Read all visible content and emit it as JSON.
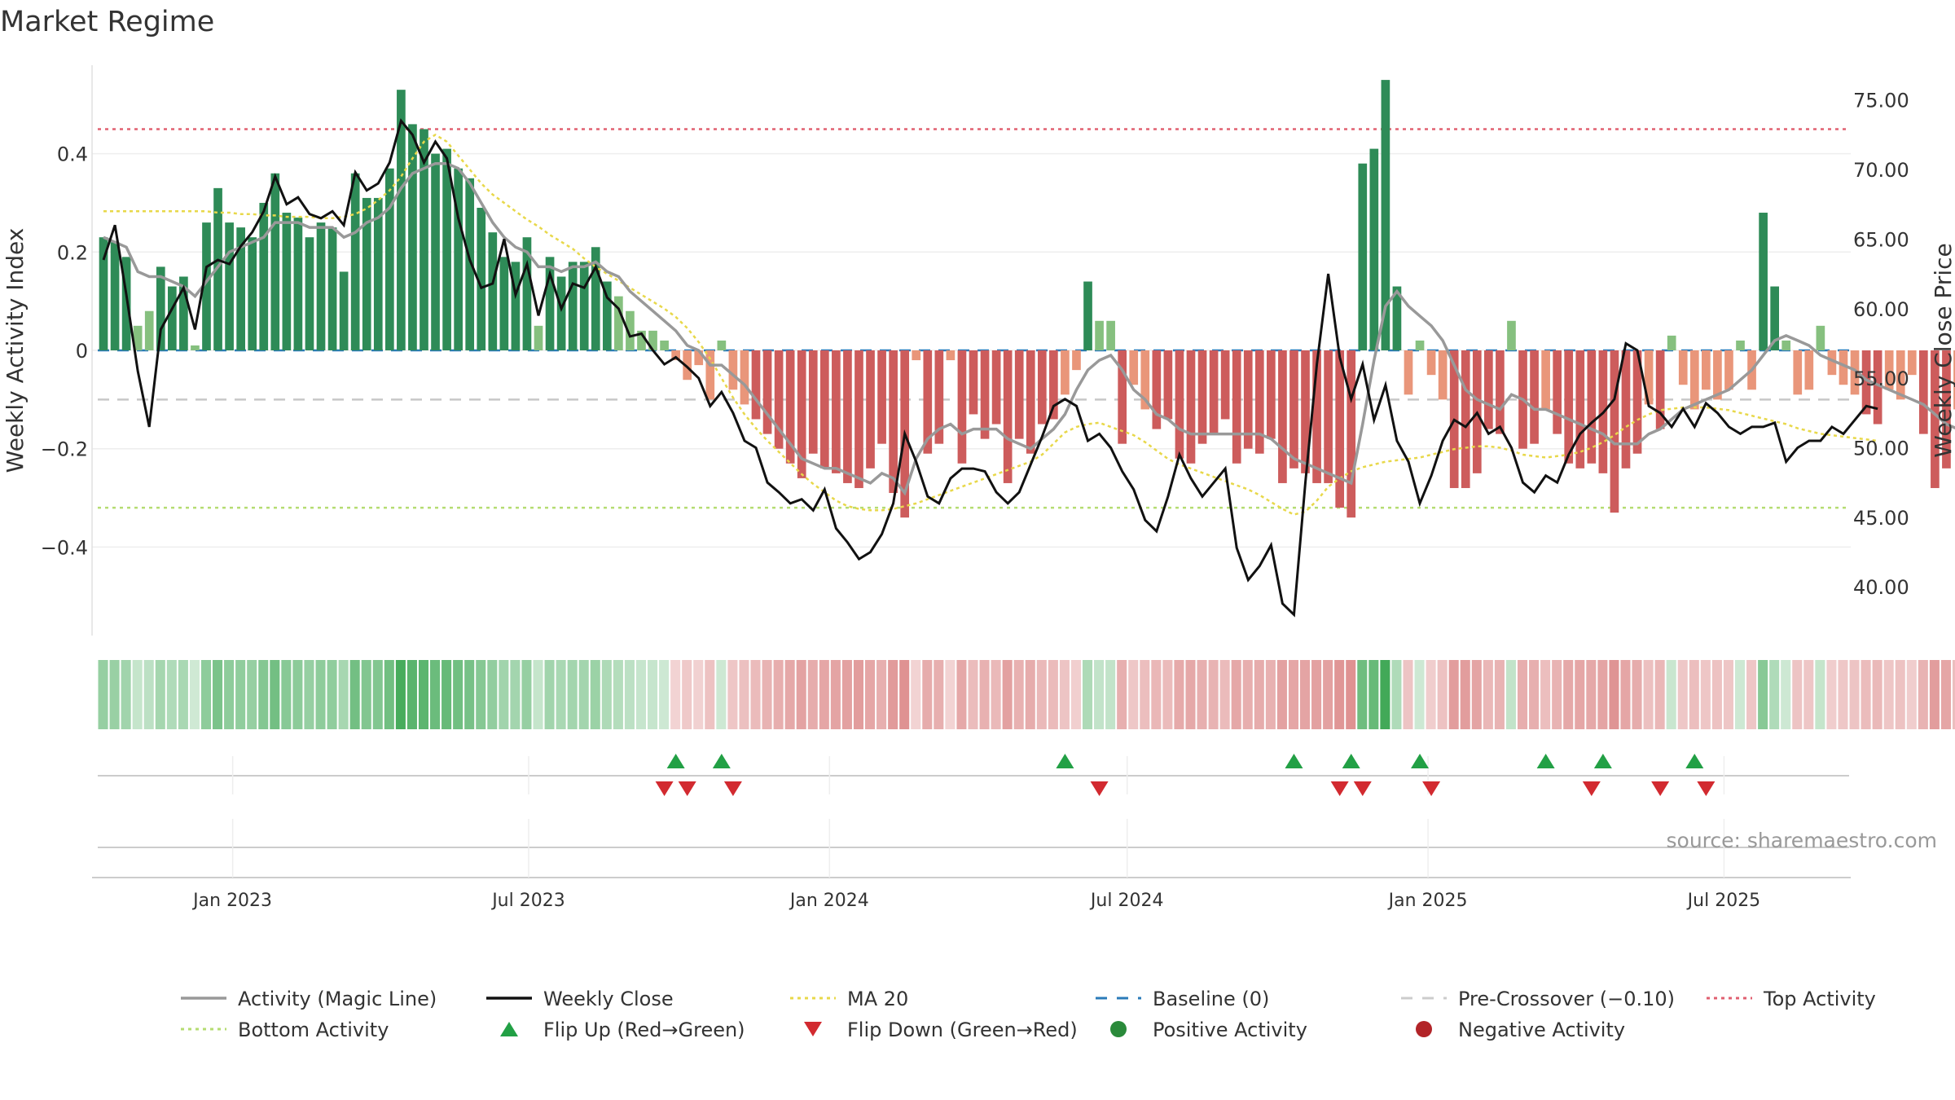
{
  "chart_data": {
    "type": "bar",
    "title": "Market Regime",
    "source": "source: sharemaestro.com",
    "ylabel_left": "Weekly Activity Index",
    "ylabel_right": "Weekly Close Price",
    "x_start": "2022-10-14",
    "week_count": 153,
    "left_ylim": [
      -0.58,
      0.58
    ],
    "right_ylim": [
      36.5,
      77.5
    ],
    "left_ticks": [
      {
        "v": 0.4,
        "label": "0.4"
      },
      {
        "v": 0.2,
        "label": "0.2"
      },
      {
        "v": 0,
        "label": "0"
      },
      {
        "v": -0.2,
        "label": "−0.2"
      },
      {
        "v": -0.4,
        "label": "−0.4"
      }
    ],
    "right_ticks": [
      {
        "v": 75,
        "label": "75.00"
      },
      {
        "v": 70,
        "label": "70.00"
      },
      {
        "v": 65,
        "label": "65.00"
      },
      {
        "v": 60,
        "label": "60.00"
      },
      {
        "v": 55,
        "label": "55.00"
      },
      {
        "v": 50,
        "label": "50.00"
      },
      {
        "v": 45,
        "label": "45.00"
      },
      {
        "v": 40,
        "label": "40.00"
      }
    ],
    "x_ticks": [
      {
        "date": "2023-01-01",
        "label": "Jan 2023"
      },
      {
        "date": "2023-07-01",
        "label": "Jul 2023"
      },
      {
        "date": "2024-01-01",
        "label": "Jan 2024"
      },
      {
        "date": "2024-07-01",
        "label": "Jul 2024"
      },
      {
        "date": "2025-01-01",
        "label": "Jan 2025"
      },
      {
        "date": "2025-07-01",
        "label": "Jul 2025"
      }
    ],
    "hlines": {
      "baseline": 0,
      "pre_crossover": -0.1,
      "top_activity": 0.45,
      "bottom_activity": -0.32
    },
    "activity_index": [
      0.23,
      0.22,
      0.19,
      0.05,
      0.08,
      0.17,
      0.13,
      0.15,
      0.01,
      0.26,
      0.33,
      0.26,
      0.25,
      0.23,
      0.3,
      0.36,
      0.28,
      0.27,
      0.23,
      0.26,
      0.25,
      0.16,
      0.36,
      0.31,
      0.31,
      0.37,
      0.53,
      0.46,
      0.45,
      0.4,
      0.41,
      0.37,
      0.35,
      0.29,
      0.24,
      0.19,
      0.18,
      0.23,
      0.05,
      0.19,
      0.15,
      0.18,
      0.18,
      0.21,
      0.14,
      0.11,
      0.08,
      0.04,
      0.04,
      0.02,
      -0.02,
      -0.06,
      -0.03,
      -0.1,
      0.02,
      -0.08,
      -0.11,
      -0.14,
      -0.17,
      -0.2,
      -0.23,
      -0.26,
      -0.21,
      -0.24,
      -0.25,
      -0.27,
      -0.28,
      -0.24,
      -0.19,
      -0.29,
      -0.34,
      -0.02,
      -0.21,
      -0.19,
      -0.02,
      -0.23,
      -0.13,
      -0.18,
      -0.15,
      -0.27,
      -0.18,
      -0.21,
      -0.15,
      -0.14,
      -0.09,
      -0.04,
      0.14,
      0.06,
      0.06,
      -0.19,
      -0.07,
      -0.12,
      -0.16,
      -0.14,
      -0.22,
      -0.23,
      -0.19,
      -0.17,
      -0.14,
      -0.23,
      -0.2,
      -0.21,
      -0.18,
      -0.27,
      -0.24,
      -0.25,
      -0.27,
      -0.27,
      -0.32,
      -0.34,
      0.38,
      0.41,
      0.55,
      0.13,
      -0.09,
      0.02,
      -0.05,
      -0.1,
      -0.28,
      -0.28,
      -0.25,
      -0.16,
      -0.17,
      0.06,
      -0.2,
      -0.19,
      -0.12,
      -0.17,
      -0.23,
      -0.24,
      -0.23,
      -0.25,
      -0.33,
      -0.24,
      -0.21,
      -0.11,
      -0.16,
      0.03,
      -0.07,
      -0.12,
      -0.08,
      -0.1,
      -0.08,
      0.02,
      -0.08,
      0.28,
      0.13,
      0.02,
      -0.09,
      -0.08,
      0.05,
      -0.05,
      -0.07,
      -0.09,
      -0.13,
      -0.15,
      -0.08,
      -0.1,
      -0.05,
      -0.17,
      -0.28,
      -0.24,
      -0.12,
      -0.21,
      -0.15,
      -0.26,
      -0.18,
      -0.2
    ],
    "series": [
      {
        "name": "Activity (Magic Line)",
        "color": "#999999",
        "values": [
          0.23,
          0.22,
          0.21,
          0.16,
          0.15,
          0.15,
          0.14,
          0.13,
          0.11,
          0.14,
          0.17,
          0.2,
          0.21,
          0.22,
          0.23,
          0.26,
          0.26,
          0.26,
          0.25,
          0.25,
          0.25,
          0.23,
          0.24,
          0.26,
          0.27,
          0.29,
          0.33,
          0.36,
          0.37,
          0.38,
          0.38,
          0.37,
          0.34,
          0.3,
          0.26,
          0.23,
          0.21,
          0.2,
          0.17,
          0.17,
          0.16,
          0.17,
          0.17,
          0.18,
          0.16,
          0.15,
          0.12,
          0.1,
          0.08,
          0.06,
          0.04,
          0.01,
          0.0,
          -0.03,
          -0.03,
          -0.05,
          -0.07,
          -0.1,
          -0.13,
          -0.16,
          -0.19,
          -0.22,
          -0.23,
          -0.24,
          -0.24,
          -0.25,
          -0.26,
          -0.27,
          -0.25,
          -0.26,
          -0.29,
          -0.22,
          -0.18,
          -0.16,
          -0.15,
          -0.17,
          -0.16,
          -0.16,
          -0.16,
          -0.18,
          -0.19,
          -0.2,
          -0.18,
          -0.16,
          -0.13,
          -0.08,
          -0.04,
          -0.02,
          -0.01,
          -0.04,
          -0.08,
          -0.1,
          -0.13,
          -0.14,
          -0.16,
          -0.17,
          -0.17,
          -0.17,
          -0.17,
          -0.17,
          -0.17,
          -0.17,
          -0.18,
          -0.2,
          -0.22,
          -0.23,
          -0.24,
          -0.25,
          -0.26,
          -0.27,
          -0.15,
          -0.02,
          0.09,
          0.12,
          0.09,
          0.07,
          0.05,
          0.02,
          -0.03,
          -0.08,
          -0.1,
          -0.11,
          -0.12,
          -0.09,
          -0.1,
          -0.12,
          -0.12,
          -0.13,
          -0.14,
          -0.15,
          -0.16,
          -0.17,
          -0.19,
          -0.19,
          -0.19,
          -0.17,
          -0.16,
          -0.14,
          -0.12,
          -0.11,
          -0.1,
          -0.09,
          -0.08,
          -0.06,
          -0.04,
          -0.01,
          0.02,
          0.03,
          0.02,
          0.01,
          -0.01,
          -0.02,
          -0.03,
          -0.04,
          -0.06,
          -0.07,
          -0.08,
          -0.09,
          -0.1,
          -0.11,
          -0.13,
          -0.15,
          -0.16,
          -0.15,
          -0.16,
          -0.18,
          -0.19,
          -0.2
        ]
      },
      {
        "name": "Weekly Close",
        "color": "#111111",
        "values": [
          63.5,
          66.0,
          61.0,
          55.5,
          51.5,
          58.5,
          60.0,
          61.5,
          58.5,
          63.0,
          63.5,
          63.2,
          64.5,
          65.5,
          67.0,
          69.5,
          67.5,
          68.0,
          66.8,
          66.5,
          67.0,
          66.0,
          69.8,
          68.5,
          69.0,
          70.5,
          73.5,
          72.5,
          70.5,
          72.0,
          70.8,
          66.5,
          63.5,
          61.5,
          61.8,
          65.0,
          61.0,
          63.2,
          59.5,
          62.5,
          60.0,
          61.8,
          61.5,
          63.0,
          60.8,
          60.0,
          58.0,
          58.2,
          57.0,
          56.0,
          56.5,
          55.8,
          55.0,
          53.0,
          54.0,
          52.5,
          50.5,
          50.0,
          47.5,
          46.8,
          46.0,
          46.3,
          45.5,
          47.0,
          44.2,
          43.2,
          42.0,
          42.5,
          43.8,
          46.0,
          51.0,
          49.0,
          46.5,
          46.0,
          47.8,
          48.5,
          48.5,
          48.3,
          46.8,
          46.0,
          46.8,
          48.8,
          50.8,
          53.0,
          53.5,
          53.0,
          50.5,
          51.0,
          50.0,
          48.3,
          47.0,
          44.8,
          44.0,
          46.5,
          49.5,
          47.8,
          46.5,
          47.5,
          48.5,
          42.8,
          40.5,
          41.5,
          43.0,
          38.8,
          38.0,
          47.5,
          56.0,
          62.5,
          56.5,
          53.5,
          56.0,
          52.0,
          54.5,
          50.5,
          49.0,
          46.0,
          48.0,
          50.5,
          52.0,
          51.5,
          52.5,
          51.0,
          51.5,
          50.0,
          47.5,
          46.8,
          48.0,
          47.5,
          49.5,
          51.0,
          51.8,
          52.5,
          53.5,
          57.5,
          57.0,
          53.0,
          52.5,
          51.5,
          52.8,
          51.5,
          53.2,
          52.5,
          51.5,
          51.0,
          51.5,
          51.5,
          51.8,
          49.0,
          50.0,
          50.5,
          50.5,
          51.5,
          51.0,
          52.0,
          53.0,
          52.8
        ]
      },
      {
        "name": "MA 20",
        "color": "#e8d84a",
        "values": [
          67.0,
          67.0,
          67.0,
          67.0,
          67.0,
          67.0,
          67.0,
          67.0,
          67.0,
          67.0,
          66.9,
          66.9,
          66.8,
          66.8,
          66.7,
          66.7,
          66.6,
          66.6,
          66.6,
          66.5,
          66.5,
          66.6,
          66.8,
          67.2,
          67.8,
          68.5,
          69.5,
          70.8,
          72.0,
          72.5,
          72.0,
          71.0,
          70.0,
          69.0,
          68.2,
          67.6,
          67.0,
          66.4,
          65.9,
          65.3,
          64.8,
          64.3,
          63.6,
          63.0,
          62.5,
          62.0,
          61.5,
          61.0,
          60.5,
          60.0,
          59.4,
          58.6,
          57.6,
          56.4,
          55.0,
          53.6,
          52.4,
          51.4,
          50.5,
          49.7,
          48.9,
          48.1,
          47.4,
          46.8,
          46.2,
          45.8,
          45.6,
          45.5,
          45.5,
          45.6,
          45.8,
          46.0,
          46.3,
          46.6,
          46.9,
          47.2,
          47.5,
          47.8,
          48.1,
          48.4,
          48.7,
          49.0,
          49.5,
          50.3,
          51.1,
          51.5,
          51.7,
          51.8,
          51.5,
          51.2,
          50.9,
          50.4,
          49.8,
          49.2,
          48.8,
          48.5,
          48.2,
          47.9,
          47.6,
          47.3,
          47.0,
          46.6,
          46.1,
          45.6,
          45.2,
          45.4,
          46.2,
          47.2,
          47.8,
          48.3,
          48.6,
          48.8,
          49.0,
          49.1,
          49.2,
          49.3,
          49.5,
          49.7,
          49.9,
          50.0,
          50.1,
          50.1,
          50.0,
          49.8,
          49.5,
          49.4,
          49.3,
          49.4,
          49.5,
          49.7,
          50.0,
          50.4,
          50.9,
          51.5,
          52.0,
          52.4,
          52.7,
          52.8,
          52.9,
          52.9,
          52.9,
          52.8,
          52.7,
          52.5,
          52.3,
          52.1,
          51.9,
          51.7,
          51.4,
          51.2,
          51.0,
          50.9,
          50.8,
          50.7,
          50.6,
          50.5
        ]
      }
    ],
    "flip_up": [
      50,
      54,
      84,
      104,
      109,
      115,
      126,
      131,
      139
    ],
    "flip_down": [
      49,
      51,
      55,
      87,
      108,
      110,
      116,
      130,
      136,
      140
    ],
    "legend": [
      {
        "label": "Activity (Magic Line)",
        "symbol": "line",
        "color": "#999999"
      },
      {
        "label": "Weekly Close",
        "symbol": "line",
        "color": "#111111"
      },
      {
        "label": "MA 20",
        "symbol": "dotted",
        "color": "#e8d84a"
      },
      {
        "label": "Baseline (0)",
        "symbol": "dashed",
        "color": "#2b7bb9"
      },
      {
        "label": "Pre-Crossover (−0.10)",
        "symbol": "dashed-light",
        "color": "#cccccc"
      },
      {
        "label": "Top Activity",
        "symbol": "dotted",
        "color": "#e06070"
      },
      {
        "label": "Bottom Activity",
        "symbol": "dotted",
        "color": "#b5dc72"
      },
      {
        "label": "Flip Up (Red→Green)",
        "symbol": "triangle-up",
        "color": "#22a045"
      },
      {
        "label": "Flip Down (Green→Red)",
        "symbol": "triangle-down",
        "color": "#d22a30"
      },
      {
        "label": "Positive Activity",
        "symbol": "dot",
        "color": "#2a8a3a"
      },
      {
        "label": "Negative Activity",
        "symbol": "dot",
        "color": "#b22428"
      }
    ],
    "colors": {
      "strong_pos": "#2e8b57",
      "weak_pos": "#86c07f",
      "strong_neg": "#cd5c5c",
      "weak_neg": "#e9967a",
      "top_line": "#e06070",
      "bottom_line": "#b5dc72",
      "baseline": "#2b7bb9",
      "pre_line": "#c8c8c8"
    }
  }
}
